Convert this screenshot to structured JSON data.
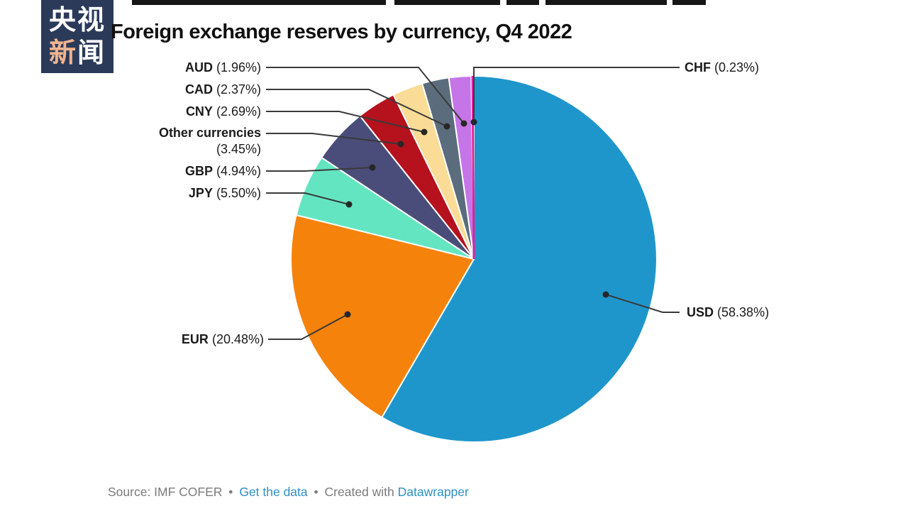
{
  "logo": {
    "row1": "央视",
    "row2_accent": "新",
    "row2_rest": "闻",
    "bg_color": "#2b3a59",
    "accent_color": "#f0b48e",
    "text_color": "#ffffff"
  },
  "header": {
    "title": "Foreign exchange reserves by currency, Q4 2022"
  },
  "chart_data": {
    "type": "pie",
    "title": "Foreign exchange reserves by currency, Q4 2022",
    "value_unit": "%",
    "direction": "clockwise",
    "start_angle_deg": 0,
    "slices": [
      {
        "label": "USD",
        "value": 58.38,
        "display": "(58.38%)",
        "color": "#1f96cb"
      },
      {
        "label": "EUR",
        "value": 20.48,
        "display": "(20.48%)",
        "color": "#f5820b"
      },
      {
        "label": "JPY",
        "value": 5.5,
        "display": "(5.50%)",
        "color": "#63e5c1"
      },
      {
        "label": "GBP",
        "value": 4.94,
        "display": "(4.94%)",
        "color": "#4a4d79"
      },
      {
        "label": "Other currencies",
        "value": 3.45,
        "display": "(3.45%)",
        "color": "#b5121d"
      },
      {
        "label": "CNY",
        "value": 2.69,
        "display": "(2.69%)",
        "color": "#fadc96"
      },
      {
        "label": "CAD",
        "value": 2.37,
        "display": "(2.37%)",
        "color": "#5b6d7c"
      },
      {
        "label": "AUD",
        "value": 1.96,
        "display": "(1.96%)",
        "color": "#c575e8"
      },
      {
        "label": "CHF",
        "value": 0.23,
        "display": "(0.23%)",
        "color": "#e0219a"
      }
    ]
  },
  "footer": {
    "source_text": "Source: IMF COFER",
    "separator": "•",
    "get_data_link": "Get the data",
    "created_with": "Created with",
    "tool_link": "Datawrapper"
  }
}
